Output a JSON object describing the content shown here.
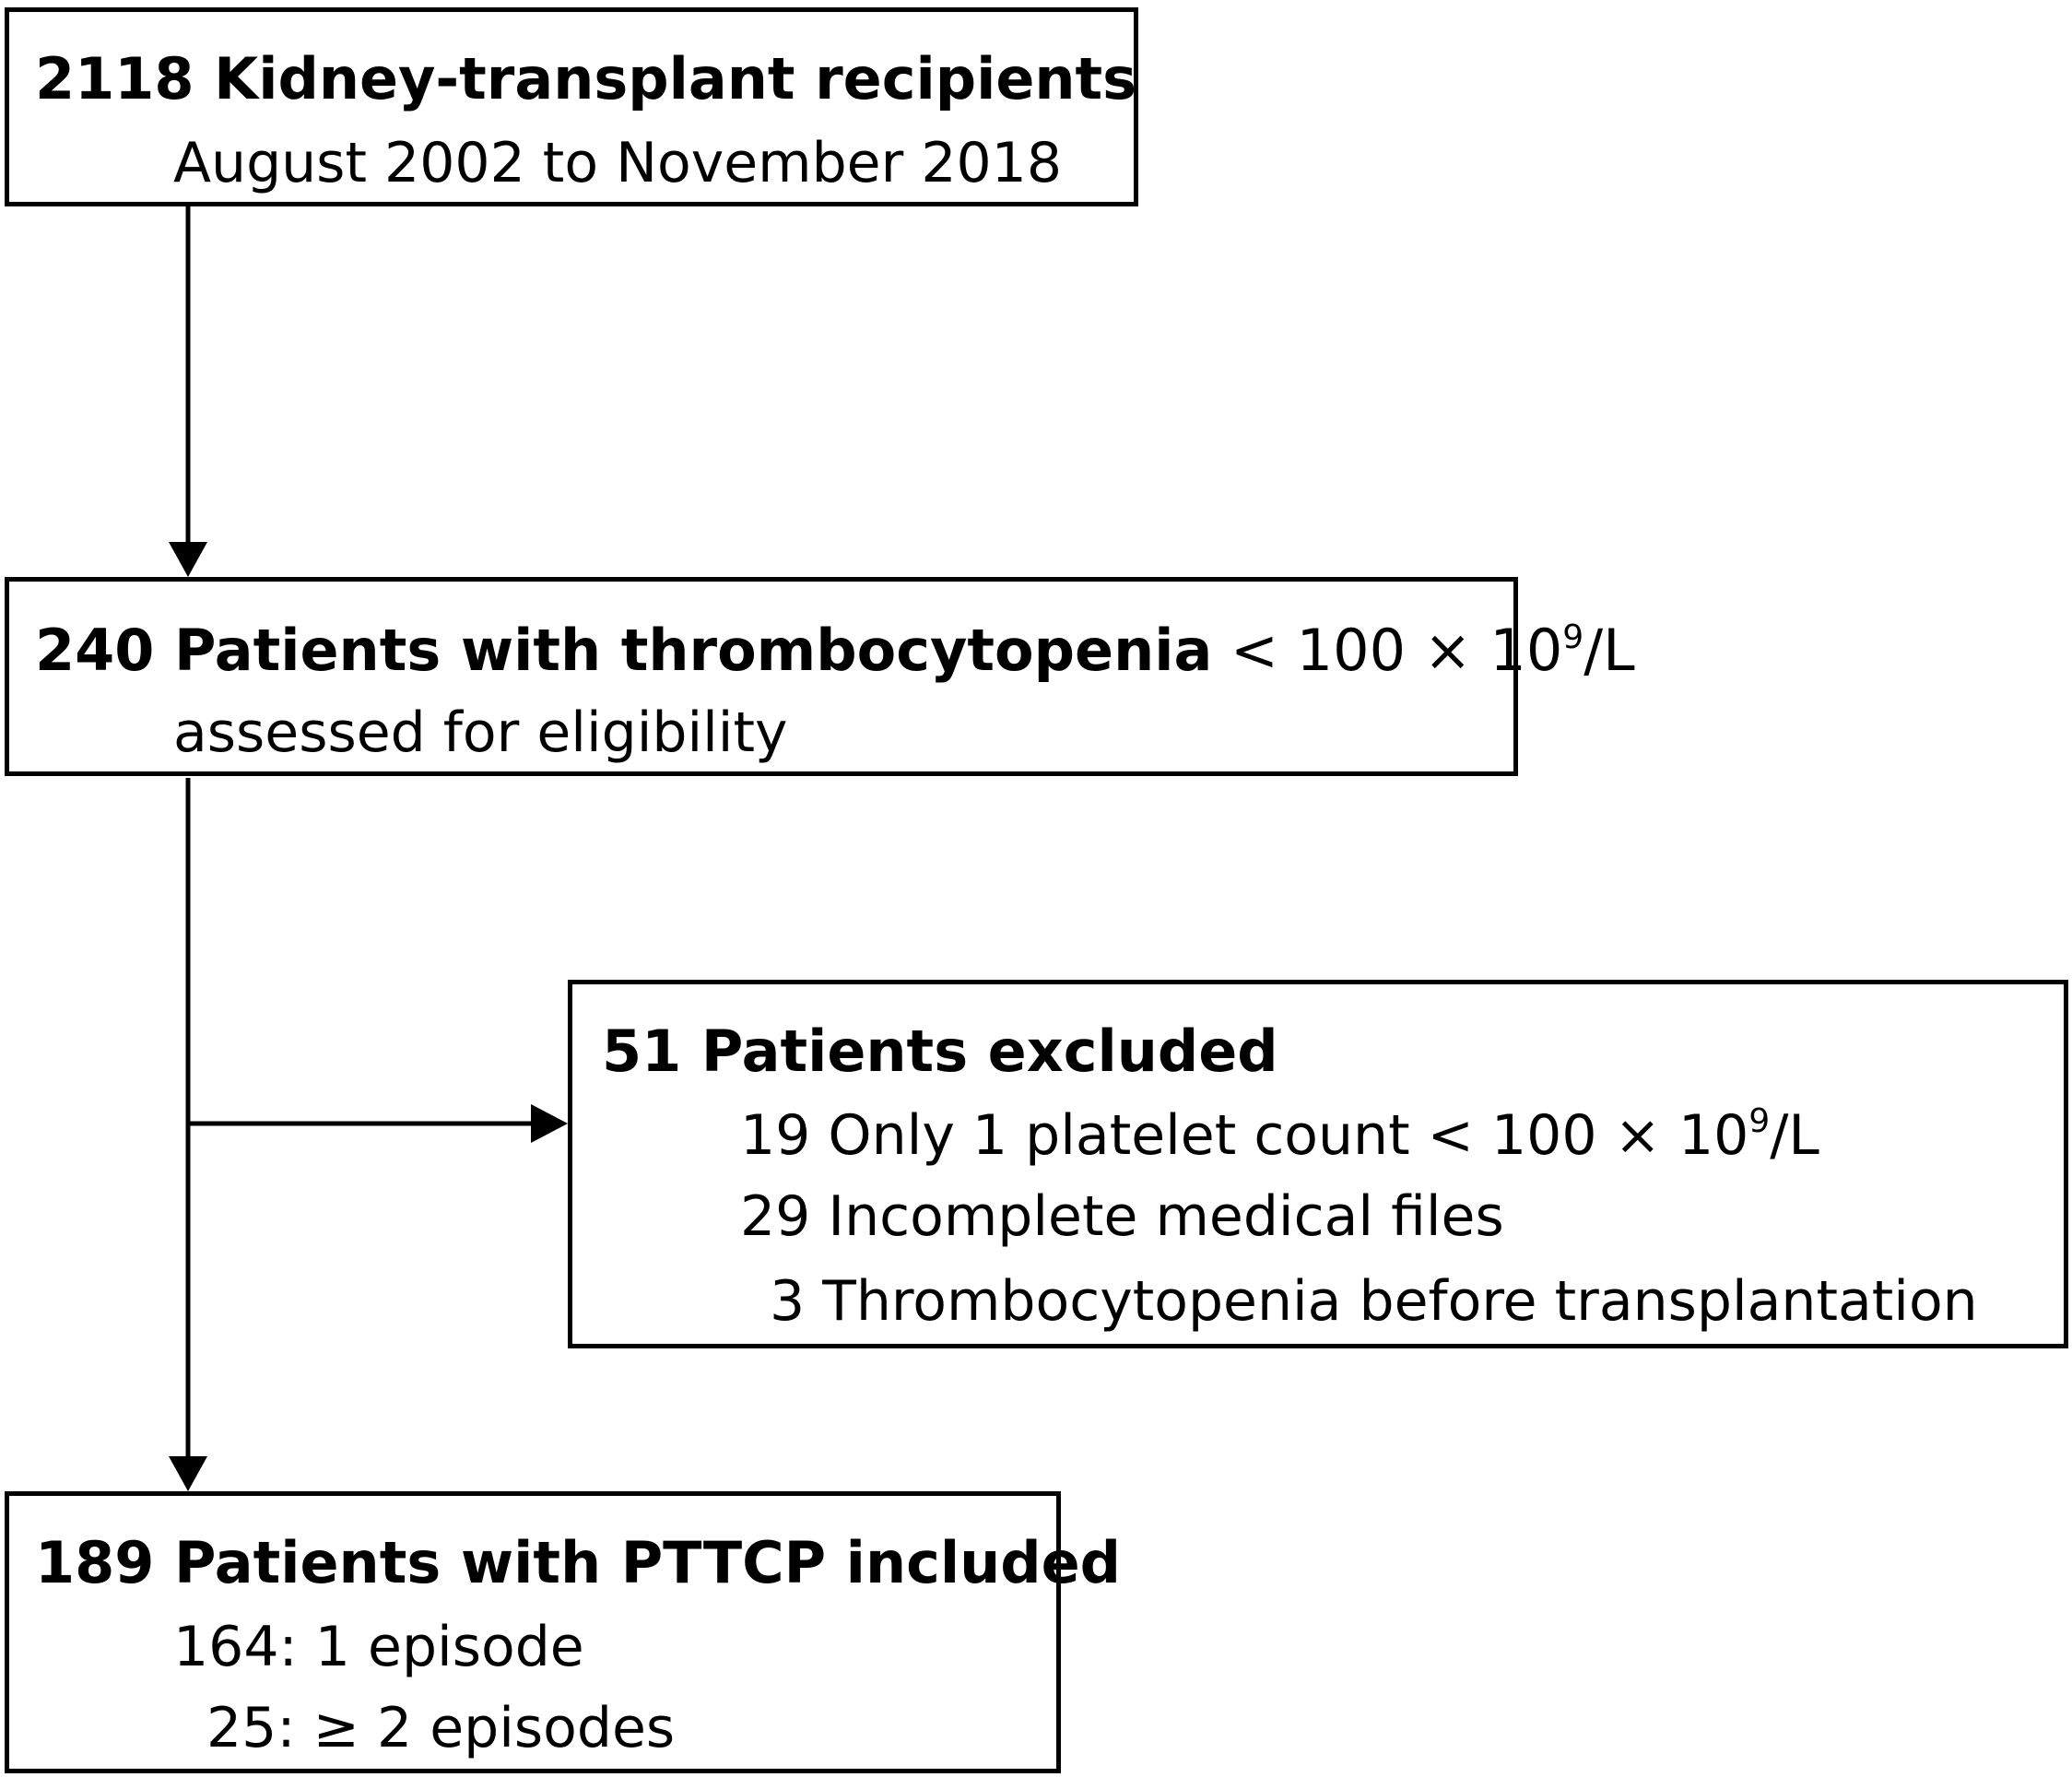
{
  "diagram": {
    "box_recipients": {
      "title": "2118 Kidney-transplant recipients",
      "period": "August 2002 to November 2018"
    },
    "box_thrombocytopenia": {
      "title": "240 Patients with thrombocytopenia",
      "threshold_prefix": "< 100 × 10",
      "threshold_exp": "9",
      "threshold_unit": "/L",
      "subtitle": "assessed for eligibility"
    },
    "box_excluded": {
      "title": "51 Patients excluded",
      "reason_1_prefix": "19 Only 1 platelet count < 100 × 10",
      "reason_1_exp": "9",
      "reason_1_unit": "/L",
      "reason_2": "29 Incomplete medical files",
      "reason_3": "3 Thrombocytopenia before transplantation"
    },
    "box_included": {
      "title": "189 Patients with PTTCP included",
      "group_1": "164: 1 episode",
      "group_2": "25: ≥ 2 episodes"
    }
  }
}
